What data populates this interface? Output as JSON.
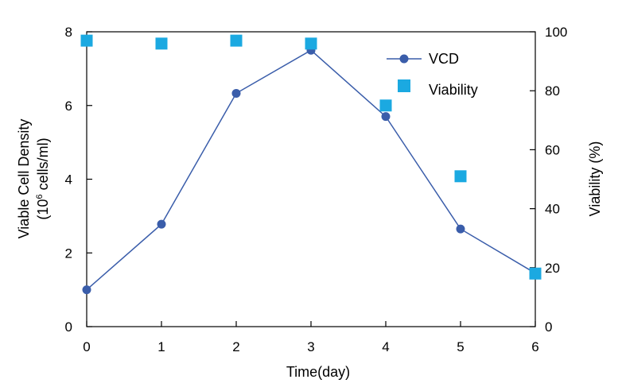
{
  "chart_data": {
    "type": "line",
    "x": [
      0,
      1,
      2,
      3,
      4,
      5,
      6
    ],
    "xlabel": "Time(day)",
    "xlim": [
      0,
      6
    ],
    "xticks": [
      "0",
      "1",
      "2",
      "3",
      "4",
      "5",
      "6"
    ],
    "ylabel_left_line1": "Viable Cell Density",
    "ylabel_left_line2_pre": "(10",
    "ylabel_left_line2_sup": "6",
    "ylabel_left_line2_post": " cells/ml)",
    "ylim_left": [
      0,
      8
    ],
    "yticks_left": [
      "0",
      "2",
      "4",
      "6",
      "8"
    ],
    "ylabel_right": "Viability (%)",
    "ylim_right": [
      0,
      100
    ],
    "yticks_right": [
      "0",
      "20",
      "40",
      "60",
      "80",
      "100"
    ],
    "grid": false,
    "legend_position": "top-right",
    "series": [
      {
        "name": "VCD",
        "axis": "left",
        "style": "line-with-circle-markers",
        "color": "#3a5daa",
        "values": [
          1.0,
          2.78,
          6.33,
          7.5,
          5.7,
          2.65,
          1.45
        ]
      },
      {
        "name": "Viability",
        "axis": "right",
        "style": "square-markers",
        "color": "#1ba9e1",
        "values": [
          97,
          96,
          97,
          96,
          75,
          51,
          18
        ]
      }
    ]
  }
}
